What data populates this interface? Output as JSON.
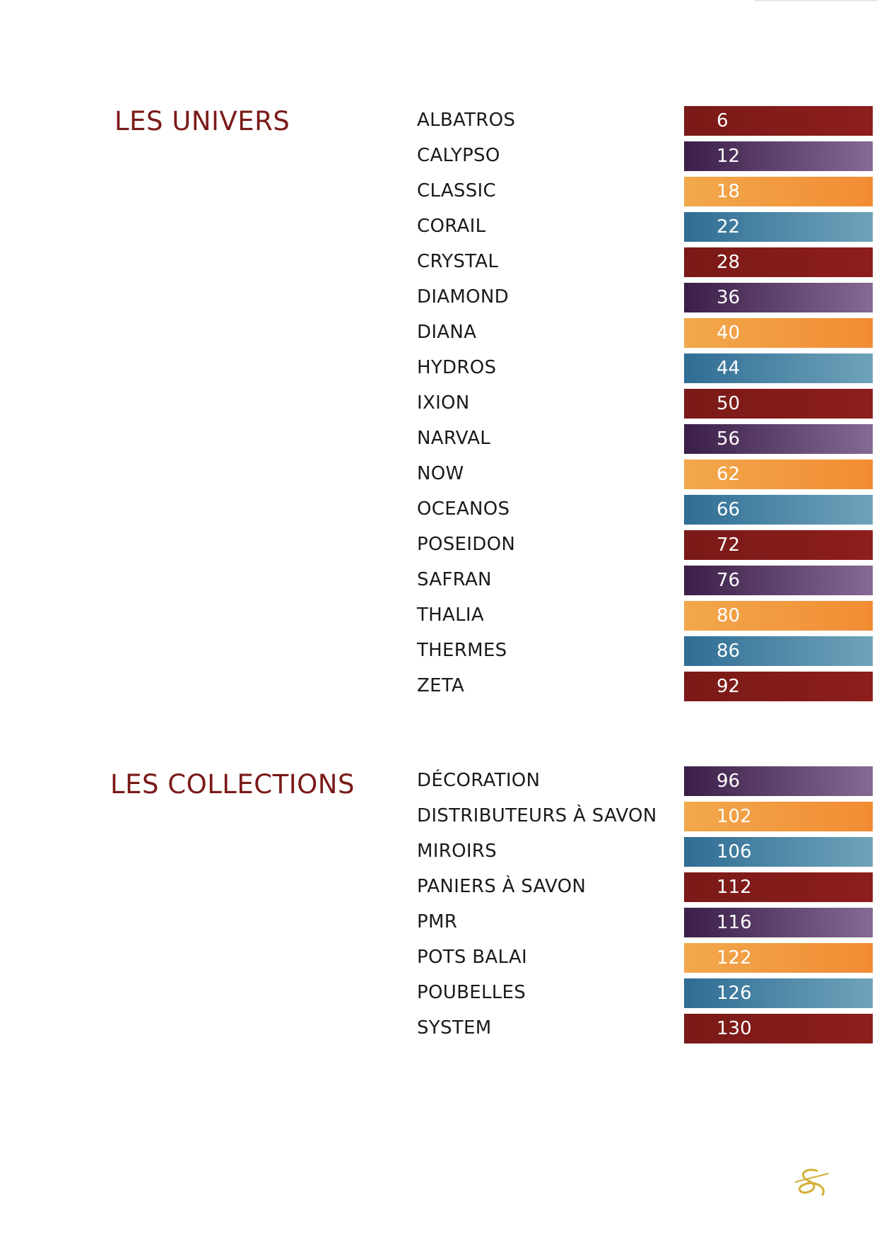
{
  "sections": {
    "univers": {
      "title": "LES UNIVERS",
      "items": [
        {
          "label": "ALBATROS",
          "page": "6",
          "color": "red"
        },
        {
          "label": "CALYPSO",
          "page": "12",
          "color": "purple"
        },
        {
          "label": "CLASSIC",
          "page": "18",
          "color": "orange"
        },
        {
          "label": "CORAIL",
          "page": "22",
          "color": "blue"
        },
        {
          "label": "CRYSTAL",
          "page": "28",
          "color": "red"
        },
        {
          "label": "DIAMOND",
          "page": "36",
          "color": "purple"
        },
        {
          "label": "DIANA",
          "page": "40",
          "color": "orange"
        },
        {
          "label": "HYDROS",
          "page": "44",
          "color": "blue"
        },
        {
          "label": "IXION",
          "page": "50",
          "color": "red"
        },
        {
          "label": "NARVAL",
          "page": "56",
          "color": "purple"
        },
        {
          "label": "NOW",
          "page": "62",
          "color": "orange"
        },
        {
          "label": "OCEANOS",
          "page": "66",
          "color": "blue"
        },
        {
          "label": "POSEIDON",
          "page": "72",
          "color": "red"
        },
        {
          "label": "SAFRAN",
          "page": "76",
          "color": "purple"
        },
        {
          "label": "THALIA",
          "page": "80",
          "color": "orange"
        },
        {
          "label": "THERMES",
          "page": "86",
          "color": "blue"
        },
        {
          "label": "ZETA",
          "page": "92",
          "color": "red"
        }
      ]
    },
    "collections": {
      "title": "LES COLLECTIONS",
      "items": [
        {
          "label": "DÉCORATION",
          "page": "96",
          "color": "purple"
        },
        {
          "label": "DISTRIBUTEURS À SAVON",
          "page": "102",
          "color": "orange"
        },
        {
          "label": "MIROIRS",
          "page": "106",
          "color": "blue"
        },
        {
          "label": "PANIERS À SAVON",
          "page": "112",
          "color": "red"
        },
        {
          "label": "PMR",
          "page": "116",
          "color": "purple"
        },
        {
          "label": "POTS BALAI",
          "page": "122",
          "color": "orange"
        },
        {
          "label": "POUBELLES",
          "page": "126",
          "color": "blue"
        },
        {
          "label": "SYSTEM",
          "page": "130",
          "color": "red"
        }
      ]
    }
  },
  "palette": {
    "title_red": "#7a1a18",
    "red": "#7a1a18",
    "purple": "#3a1e48",
    "orange": "#f2a84c",
    "blue": "#2f6d94",
    "gold": "#d4af37"
  },
  "brand_mark_icon": "gold-ampersand-logo-icon"
}
